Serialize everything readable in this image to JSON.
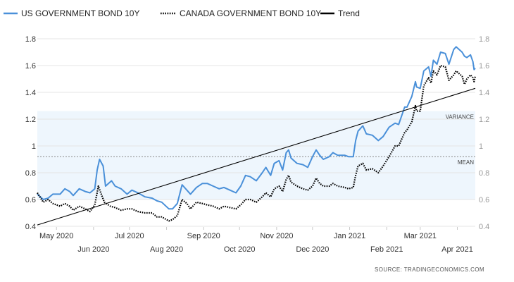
{
  "chart_data": {
    "type": "line",
    "title": "",
    "xlabel": "",
    "ylabel": "",
    "ylim": [
      0.4,
      1.8
    ],
    "yticks": [
      "0.4",
      "0.6",
      "0.8",
      "1",
      "1.2",
      "1.4",
      "1.6",
      "1.8"
    ],
    "xrange": [
      "2020-04-15",
      "2021-04-16"
    ],
    "month_ticks_top": [
      {
        "label": "May 2020",
        "date": "2020-05-01"
      },
      {
        "label": "Jul 2020",
        "date": "2020-07-01"
      },
      {
        "label": "Sep 2020",
        "date": "2020-09-01"
      },
      {
        "label": "Nov 2020",
        "date": "2020-11-01"
      },
      {
        "label": "Jan 2021",
        "date": "2021-01-01"
      },
      {
        "label": "Mar 2021",
        "date": "2021-03-01"
      }
    ],
    "month_ticks_bottom": [
      {
        "label": "Jun 2020",
        "date": "2020-06-01"
      },
      {
        "label": "Aug 2020",
        "date": "2020-08-01"
      },
      {
        "label": "Oct 2020",
        "date": "2020-10-01"
      },
      {
        "label": "Dec 2020",
        "date": "2020-12-01"
      },
      {
        "label": "Feb 2021",
        "date": "2021-02-01"
      },
      {
        "label": "Apr 2021",
        "date": "2021-04-01"
      }
    ],
    "legend_position": "top-left",
    "grid": "horizontal",
    "series": [
      {
        "name": "US GOVERNMENT BOND 10Y",
        "color": "#4a90d9",
        "style": "solid",
        "points": [
          [
            "2020-04-15",
            0.64
          ],
          [
            "2020-04-20",
            0.6
          ],
          [
            "2020-04-24",
            0.61
          ],
          [
            "2020-04-28",
            0.64
          ],
          [
            "2020-05-04",
            0.64
          ],
          [
            "2020-05-08",
            0.68
          ],
          [
            "2020-05-12",
            0.66
          ],
          [
            "2020-05-15",
            0.63
          ],
          [
            "2020-05-20",
            0.68
          ],
          [
            "2020-05-25",
            0.66
          ],
          [
            "2020-05-29",
            0.65
          ],
          [
            "2020-06-02",
            0.68
          ],
          [
            "2020-06-04",
            0.82
          ],
          [
            "2020-06-06",
            0.9
          ],
          [
            "2020-06-09",
            0.85
          ],
          [
            "2020-06-11",
            0.7
          ],
          [
            "2020-06-16",
            0.74
          ],
          [
            "2020-06-19",
            0.7
          ],
          [
            "2020-06-24",
            0.68
          ],
          [
            "2020-06-29",
            0.64
          ],
          [
            "2020-07-03",
            0.67
          ],
          [
            "2020-07-08",
            0.65
          ],
          [
            "2020-07-14",
            0.62
          ],
          [
            "2020-07-20",
            0.61
          ],
          [
            "2020-07-24",
            0.59
          ],
          [
            "2020-07-28",
            0.58
          ],
          [
            "2020-08-03",
            0.53
          ],
          [
            "2020-08-06",
            0.53
          ],
          [
            "2020-08-10",
            0.57
          ],
          [
            "2020-08-14",
            0.71
          ],
          [
            "2020-08-18",
            0.67
          ],
          [
            "2020-08-21",
            0.64
          ],
          [
            "2020-08-26",
            0.69
          ],
          [
            "2020-08-31",
            0.72
          ],
          [
            "2020-09-04",
            0.72
          ],
          [
            "2020-09-09",
            0.7
          ],
          [
            "2020-09-14",
            0.68
          ],
          [
            "2020-09-18",
            0.69
          ],
          [
            "2020-09-23",
            0.67
          ],
          [
            "2020-09-28",
            0.65
          ],
          [
            "2020-10-02",
            0.7
          ],
          [
            "2020-10-06",
            0.78
          ],
          [
            "2020-10-10",
            0.77
          ],
          [
            "2020-10-15",
            0.74
          ],
          [
            "2020-10-20",
            0.8
          ],
          [
            "2020-10-23",
            0.84
          ],
          [
            "2020-10-27",
            0.78
          ],
          [
            "2020-10-30",
            0.87
          ],
          [
            "2020-11-03",
            0.89
          ],
          [
            "2020-11-06",
            0.82
          ],
          [
            "2020-11-09",
            0.95
          ],
          [
            "2020-11-11",
            0.97
          ],
          [
            "2020-11-13",
            0.91
          ],
          [
            "2020-11-18",
            0.87
          ],
          [
            "2020-11-23",
            0.86
          ],
          [
            "2020-11-27",
            0.84
          ],
          [
            "2020-12-01",
            0.92
          ],
          [
            "2020-12-04",
            0.97
          ],
          [
            "2020-12-07",
            0.93
          ],
          [
            "2020-12-10",
            0.9
          ],
          [
            "2020-12-15",
            0.92
          ],
          [
            "2020-12-18",
            0.95
          ],
          [
            "2020-12-22",
            0.93
          ],
          [
            "2020-12-28",
            0.93
          ],
          [
            "2020-12-31",
            0.92
          ],
          [
            "2021-01-04",
            0.92
          ],
          [
            "2021-01-06",
            1.04
          ],
          [
            "2021-01-08",
            1.11
          ],
          [
            "2021-01-12",
            1.15
          ],
          [
            "2021-01-15",
            1.09
          ],
          [
            "2021-01-20",
            1.08
          ],
          [
            "2021-01-25",
            1.04
          ],
          [
            "2021-01-29",
            1.07
          ],
          [
            "2021-02-03",
            1.14
          ],
          [
            "2021-02-08",
            1.17
          ],
          [
            "2021-02-11",
            1.16
          ],
          [
            "2021-02-16",
            1.29
          ],
          [
            "2021-02-18",
            1.29
          ],
          [
            "2021-02-22",
            1.37
          ],
          [
            "2021-02-25",
            1.48
          ],
          [
            "2021-02-26",
            1.44
          ],
          [
            "2021-03-01",
            1.43
          ],
          [
            "2021-03-04",
            1.56
          ],
          [
            "2021-03-08",
            1.59
          ],
          [
            "2021-03-10",
            1.52
          ],
          [
            "2021-03-12",
            1.64
          ],
          [
            "2021-03-15",
            1.61
          ],
          [
            "2021-03-18",
            1.7
          ],
          [
            "2021-03-22",
            1.69
          ],
          [
            "2021-03-25",
            1.61
          ],
          [
            "2021-03-29",
            1.72
          ],
          [
            "2021-03-31",
            1.74
          ],
          [
            "2021-04-05",
            1.7
          ],
          [
            "2021-04-07",
            1.67
          ],
          [
            "2021-04-09",
            1.66
          ],
          [
            "2021-04-12",
            1.68
          ],
          [
            "2021-04-14",
            1.63
          ],
          [
            "2021-04-15",
            1.57
          ],
          [
            "2021-04-16",
            1.58
          ]
        ]
      },
      {
        "name": "CANADA GOVERNMENT BOND 10Y",
        "color": "#000000",
        "style": "dotted",
        "points": [
          [
            "2020-04-15",
            0.65
          ],
          [
            "2020-04-20",
            0.58
          ],
          [
            "2020-04-24",
            0.6
          ],
          [
            "2020-04-28",
            0.57
          ],
          [
            "2020-05-04",
            0.55
          ],
          [
            "2020-05-08",
            0.57
          ],
          [
            "2020-05-12",
            0.55
          ],
          [
            "2020-05-15",
            0.52
          ],
          [
            "2020-05-20",
            0.55
          ],
          [
            "2020-05-25",
            0.53
          ],
          [
            "2020-05-29",
            0.51
          ],
          [
            "2020-06-02",
            0.56
          ],
          [
            "2020-06-05",
            0.7
          ],
          [
            "2020-06-07",
            0.65
          ],
          [
            "2020-06-10",
            0.58
          ],
          [
            "2020-06-15",
            0.55
          ],
          [
            "2020-06-19",
            0.54
          ],
          [
            "2020-06-24",
            0.52
          ],
          [
            "2020-06-29",
            0.53
          ],
          [
            "2020-07-03",
            0.53
          ],
          [
            "2020-07-08",
            0.51
          ],
          [
            "2020-07-14",
            0.5
          ],
          [
            "2020-07-20",
            0.5
          ],
          [
            "2020-07-24",
            0.47
          ],
          [
            "2020-07-28",
            0.47
          ],
          [
            "2020-08-03",
            0.44
          ],
          [
            "2020-08-06",
            0.45
          ],
          [
            "2020-08-10",
            0.48
          ],
          [
            "2020-08-14",
            0.6
          ],
          [
            "2020-08-18",
            0.57
          ],
          [
            "2020-08-21",
            0.53
          ],
          [
            "2020-08-26",
            0.58
          ],
          [
            "2020-08-31",
            0.57
          ],
          [
            "2020-09-04",
            0.56
          ],
          [
            "2020-09-09",
            0.55
          ],
          [
            "2020-09-14",
            0.53
          ],
          [
            "2020-09-18",
            0.55
          ],
          [
            "2020-09-23",
            0.54
          ],
          [
            "2020-09-28",
            0.53
          ],
          [
            "2020-10-02",
            0.56
          ],
          [
            "2020-10-06",
            0.6
          ],
          [
            "2020-10-10",
            0.6
          ],
          [
            "2020-10-15",
            0.58
          ],
          [
            "2020-10-20",
            0.62
          ],
          [
            "2020-10-23",
            0.65
          ],
          [
            "2020-10-27",
            0.62
          ],
          [
            "2020-10-30",
            0.68
          ],
          [
            "2020-11-03",
            0.7
          ],
          [
            "2020-11-06",
            0.66
          ],
          [
            "2020-11-09",
            0.75
          ],
          [
            "2020-11-11",
            0.78
          ],
          [
            "2020-11-13",
            0.73
          ],
          [
            "2020-11-18",
            0.7
          ],
          [
            "2020-11-23",
            0.68
          ],
          [
            "2020-11-27",
            0.67
          ],
          [
            "2020-12-01",
            0.7
          ],
          [
            "2020-12-04",
            0.76
          ],
          [
            "2020-12-07",
            0.72
          ],
          [
            "2020-12-10",
            0.7
          ],
          [
            "2020-12-15",
            0.7
          ],
          [
            "2020-12-18",
            0.72
          ],
          [
            "2020-12-22",
            0.7
          ],
          [
            "2020-12-28",
            0.69
          ],
          [
            "2020-12-31",
            0.68
          ],
          [
            "2021-01-04",
            0.69
          ],
          [
            "2021-01-06",
            0.78
          ],
          [
            "2021-01-08",
            0.85
          ],
          [
            "2021-01-12",
            0.87
          ],
          [
            "2021-01-15",
            0.82
          ],
          [
            "2021-01-20",
            0.83
          ],
          [
            "2021-01-25",
            0.8
          ],
          [
            "2021-01-29",
            0.85
          ],
          [
            "2021-02-03",
            0.92
          ],
          [
            "2021-02-08",
            1.0
          ],
          [
            "2021-02-11",
            1.0
          ],
          [
            "2021-02-16",
            1.1
          ],
          [
            "2021-02-18",
            1.12
          ],
          [
            "2021-02-22",
            1.18
          ],
          [
            "2021-02-25",
            1.3
          ],
          [
            "2021-02-26",
            1.26
          ],
          [
            "2021-03-01",
            1.26
          ],
          [
            "2021-03-04",
            1.45
          ],
          [
            "2021-03-08",
            1.51
          ],
          [
            "2021-03-10",
            1.47
          ],
          [
            "2021-03-12",
            1.56
          ],
          [
            "2021-03-15",
            1.53
          ],
          [
            "2021-03-18",
            1.6
          ],
          [
            "2021-03-22",
            1.59
          ],
          [
            "2021-03-25",
            1.49
          ],
          [
            "2021-03-29",
            1.53
          ],
          [
            "2021-03-31",
            1.56
          ],
          [
            "2021-04-05",
            1.52
          ],
          [
            "2021-04-07",
            1.46
          ],
          [
            "2021-04-09",
            1.5
          ],
          [
            "2021-04-12",
            1.53
          ],
          [
            "2021-04-14",
            1.51
          ],
          [
            "2021-04-15",
            1.48
          ],
          [
            "2021-04-16",
            1.52
          ]
        ]
      },
      {
        "name": "Trend",
        "color": "#000000",
        "style": "solid",
        "points": [
          [
            "2020-04-15",
            0.41
          ],
          [
            "2021-04-16",
            1.43
          ]
        ]
      }
    ],
    "bands": [
      {
        "label": "VARIANCE",
        "from": 0.6,
        "to": 1.26
      }
    ],
    "reference_lines": [
      {
        "label": "MEAN",
        "value": 0.92,
        "style": "dashed"
      }
    ],
    "source": "SOURCE:  TRADINGECONOMICS.COM"
  }
}
